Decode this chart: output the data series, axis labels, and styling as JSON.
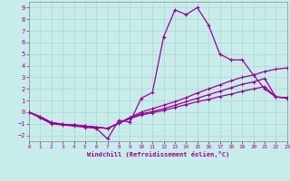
{
  "xlabel": "Windchill (Refroidissement éolien,°C)",
  "xlim": [
    0,
    23
  ],
  "ylim": [
    -2.5,
    9.5
  ],
  "xticks": [
    0,
    1,
    2,
    3,
    4,
    5,
    6,
    7,
    8,
    9,
    10,
    11,
    12,
    13,
    14,
    15,
    16,
    17,
    18,
    19,
    20,
    21,
    22,
    23
  ],
  "yticks": [
    -2,
    -1,
    0,
    1,
    2,
    3,
    4,
    5,
    6,
    7,
    8,
    9
  ],
  "bg_color": "#c8ecea",
  "line_color": "#990099",
  "grid_color": "#b0d4d0",
  "spike_x": [
    0,
    1,
    2,
    3,
    4,
    5,
    6,
    7,
    8,
    9,
    10,
    11,
    12,
    13,
    14,
    15,
    16,
    17,
    18,
    19,
    20,
    21,
    22,
    23
  ],
  "spike_y": [
    0.0,
    -0.5,
    -1.0,
    -1.1,
    -1.2,
    -1.3,
    -1.4,
    -2.3,
    -0.7,
    -0.85,
    1.2,
    1.7,
    6.5,
    8.8,
    8.4,
    9.0,
    7.5,
    5.0,
    4.5,
    4.5,
    3.2,
    2.0,
    1.3,
    1.2
  ],
  "curve2_x": [
    0,
    1,
    2,
    3,
    4,
    5,
    6,
    7,
    8,
    9,
    10,
    11,
    12,
    13,
    14,
    15,
    16,
    17,
    18,
    19,
    20,
    21,
    22,
    23
  ],
  "curve2_y": [
    0.0,
    -0.4,
    -0.9,
    -1.05,
    -1.1,
    -1.2,
    -1.3,
    -1.4,
    -0.95,
    -0.45,
    0.0,
    0.3,
    0.6,
    0.9,
    1.25,
    1.65,
    2.0,
    2.35,
    2.7,
    3.0,
    3.2,
    3.5,
    3.7,
    3.8
  ],
  "curve3_x": [
    0,
    1,
    2,
    3,
    4,
    5,
    6,
    7,
    8,
    9,
    10,
    11,
    12,
    13,
    14,
    15,
    16,
    17,
    18,
    19,
    20,
    21,
    22,
    23
  ],
  "curve3_y": [
    0.0,
    -0.4,
    -0.9,
    -1.05,
    -1.1,
    -1.2,
    -1.3,
    -1.4,
    -0.95,
    -0.5,
    -0.15,
    0.05,
    0.3,
    0.6,
    0.9,
    1.2,
    1.5,
    1.8,
    2.1,
    2.4,
    2.6,
    2.9,
    1.3,
    1.25
  ],
  "curve4_x": [
    0,
    1,
    2,
    3,
    4,
    5,
    6,
    7,
    8,
    9,
    10,
    11,
    12,
    13,
    14,
    15,
    16,
    17,
    18,
    19,
    20,
    21,
    22,
    23
  ],
  "curve4_y": [
    0.0,
    -0.4,
    -0.9,
    -1.05,
    -1.1,
    -1.2,
    -1.3,
    -1.4,
    -0.95,
    -0.55,
    -0.25,
    -0.05,
    0.15,
    0.4,
    0.65,
    0.9,
    1.1,
    1.35,
    1.55,
    1.8,
    2.0,
    2.2,
    1.3,
    1.25
  ]
}
